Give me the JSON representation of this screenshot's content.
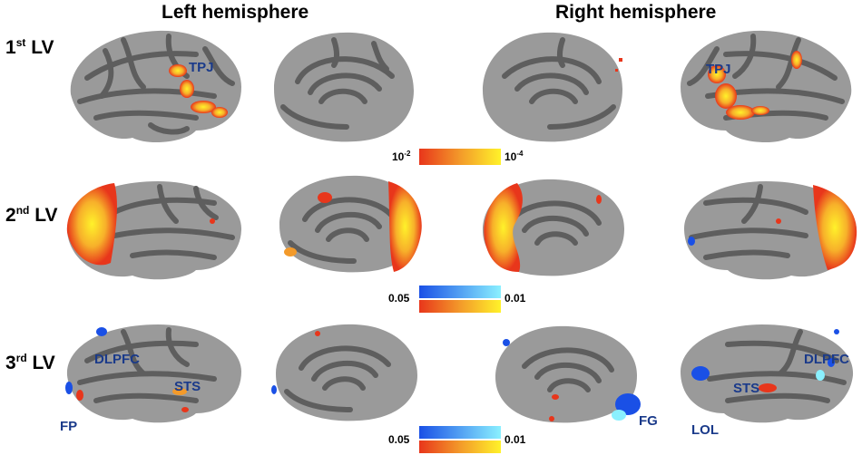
{
  "headers": {
    "left": "Left hemisphere",
    "right": "Right hemisphere"
  },
  "rows": [
    {
      "ordinal": "1",
      "suffix": "st",
      "lv": "LV"
    },
    {
      "ordinal": "2",
      "suffix": "nd",
      "lv": "LV"
    },
    {
      "ordinal": "3",
      "suffix": "rd",
      "lv": "LV"
    }
  ],
  "roi_labels": {
    "r1_left_lateral": "TPJ",
    "r1_right_lateral": "TPJ",
    "r3_dlpfc_left": "DLPFC",
    "r3_sts_left": "STS",
    "r3_fp": "FP",
    "r3_fg": "FG",
    "r3_lol": "LOL",
    "r3_sts_right": "STS",
    "r3_dlpfc_right": "DLPFC"
  },
  "colorbars": {
    "bar1": {
      "low_base": "10",
      "low_exp": "-2",
      "high_base": "10",
      "high_exp": "-4"
    },
    "bar2": {
      "low": "0.05",
      "high": "0.01"
    },
    "bar3": {
      "low": "0.05",
      "high": "0.01"
    }
  },
  "colors": {
    "brain_light": "#9a9a9a",
    "brain_dark": "#5e5e5e",
    "hot_low": "#e8361b",
    "hot_high": "#fff22a",
    "cool_low": "#1a50e6",
    "cool_high": "#8af0ff",
    "roi_text": "#1a3a8a"
  }
}
